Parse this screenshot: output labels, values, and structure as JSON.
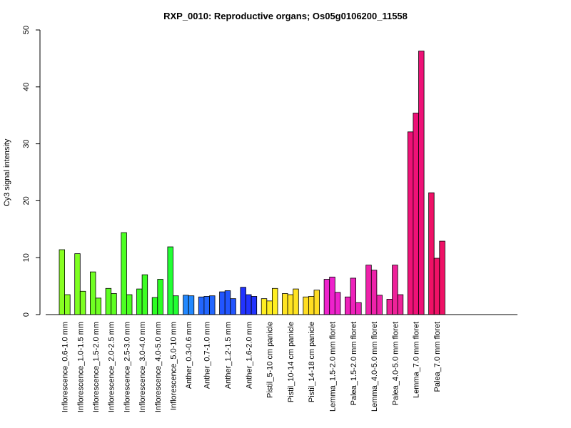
{
  "chart_data": {
    "type": "bar",
    "title": "RXP_0010: Reproductive organs; Os05g0106200_11558",
    "xlabel": "",
    "ylabel": "Cy3 signal intensity",
    "ylim": [
      0,
      50
    ],
    "yticks": [
      0,
      10,
      20,
      30,
      40,
      50
    ],
    "grid": false,
    "legend": "none",
    "groups": [
      {
        "label": "Inflorescence_0.6-1.0 mm",
        "values": [
          11.4,
          3.5
        ],
        "color": "#88ff22"
      },
      {
        "label": "Inflorescence_1.0-1.5 mm",
        "values": [
          10.7,
          4.1
        ],
        "color": "#7eff22"
      },
      {
        "label": "Inflorescence_1.5-2.0 mm",
        "values": [
          7.5,
          2.9
        ],
        "color": "#70ff22"
      },
      {
        "label": "Inflorescence_2.0-2.5 mm",
        "values": [
          4.6,
          3.7
        ],
        "color": "#5eff22"
      },
      {
        "label": "Inflorescence_2.5-3.0 mm",
        "values": [
          14.4,
          3.5
        ],
        "color": "#4cff22"
      },
      {
        "label": "Inflorescence_3.0-4.0 mm",
        "values": [
          4.5,
          7.0
        ],
        "color": "#3cff22"
      },
      {
        "label": "Inflorescence_4.0-5.0 mm",
        "values": [
          3.0,
          6.2
        ],
        "color": "#2cff22"
      },
      {
        "label": "Inflorescence_5.0-10 mm",
        "values": [
          11.9,
          3.3
        ],
        "color": "#22ff33"
      },
      {
        "label": "Anther_0.3-0.6 mm",
        "values": [
          3.4,
          3.3
        ],
        "color": "#2288ff"
      },
      {
        "label": "Anther_0.7-1.0 mm",
        "values": [
          3.1,
          3.2,
          3.3
        ],
        "color": "#2266ff"
      },
      {
        "label": "Anther_1.2-1.5 mm",
        "values": [
          4.0,
          4.2,
          2.8
        ],
        "color": "#2255ff"
      },
      {
        "label": "Anther_1.6-2.0 mm",
        "values": [
          4.8,
          3.5,
          3.2
        ],
        "color": "#2233ff"
      },
      {
        "label": "Pistil_5-10 cm panicle",
        "values": [
          2.8,
          2.4,
          4.6
        ],
        "color": "#ffee22"
      },
      {
        "label": "Pistil_10-14 cm panicle",
        "values": [
          3.7,
          3.5,
          4.5
        ],
        "color": "#ffe422"
      },
      {
        "label": "Pistil_14-18 cm panicle",
        "values": [
          3.1,
          3.2,
          4.3
        ],
        "color": "#ffdd22"
      },
      {
        "label": "Lemma_1.5-2.0 mm floret",
        "values": [
          6.2,
          6.6,
          3.9
        ],
        "color": "#ee22cc"
      },
      {
        "label": "Palea_1.5-2.0 mm floret",
        "values": [
          3.1,
          6.4,
          2.1
        ],
        "color": "#ee22bb"
      },
      {
        "label": "Lemma_4.0-5.0 mm floret",
        "values": [
          8.7,
          7.8,
          3.4
        ],
        "color": "#ee22aa"
      },
      {
        "label": "Palea_4.0-5.0 mm floret",
        "values": [
          2.7,
          8.7,
          3.5
        ],
        "color": "#ee2299"
      },
      {
        "label": "Lemma_7.0 mm floret",
        "values": [
          32.1,
          35.4,
          46.3
        ],
        "color": "#ee1177"
      },
      {
        "label": "Palea_7.0 mm floret",
        "values": [
          21.4,
          9.9,
          12.9
        ],
        "color": "#ee1166"
      }
    ]
  }
}
